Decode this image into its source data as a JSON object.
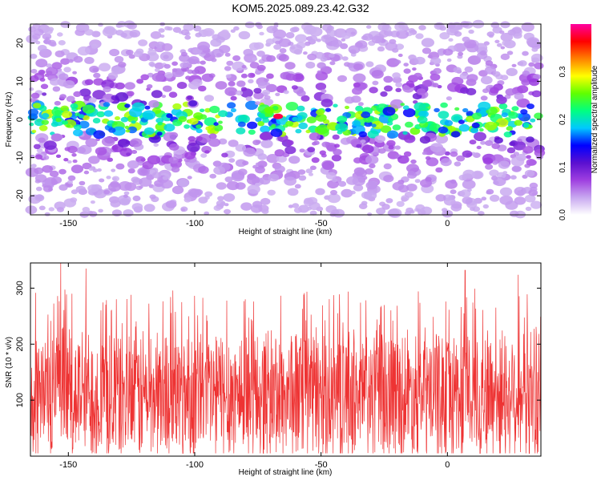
{
  "title": "KOM5.2025.089.23.42.G32",
  "chart_data": [
    {
      "type": "heatmap",
      "title": "",
      "xlabel": "Height of straight line (km)",
      "ylabel": "Frequency (Hz)",
      "xlim": [
        -165,
        37
      ],
      "ylim": [
        -25,
        25
      ],
      "x_ticks": [
        -150,
        -100,
        -50,
        0
      ],
      "y_ticks": [
        -20,
        -10,
        0,
        10,
        20
      ],
      "colorbar": {
        "label": "Normalized spectral amplitude",
        "range": [
          0,
          0.4
        ],
        "ticks": [
          0.0,
          0.1,
          0.2,
          0.3
        ],
        "colormap": [
          "#ffffff",
          "#c8a8f0",
          "#9f3fe0",
          "#5a10d0",
          "#0000ff",
          "#00c8ff",
          "#00ff80",
          "#60ff00",
          "#ffff00",
          "#ff8000",
          "#ff0000",
          "#ff00a0"
        ]
      },
      "description_band": {
        "center_frequency": 0,
        "width_hz": 8
      },
      "peak": {
        "x": -67,
        "y": 0.8,
        "value": 0.38
      }
    },
    {
      "type": "line",
      "title": "",
      "xlabel": "Height of straight line (km)",
      "ylabel": "SNR (10 * v/v)",
      "xlim": [
        -165,
        37
      ],
      "ylim": [
        0,
        345
      ],
      "x_ticks": [
        -150,
        -100,
        -50,
        0
      ],
      "y_ticks": [
        100,
        200,
        300
      ],
      "series": [
        {
          "color": "#ee3333",
          "mean": 110,
          "typical_min": 5,
          "typical_max": 240
        }
      ],
      "notable_peaks": [
        {
          "x": -153,
          "y": 345
        },
        {
          "x": -143,
          "y": 335
        },
        {
          "x": 7,
          "y": 332
        },
        {
          "x": 28,
          "y": 324
        }
      ]
    }
  ]
}
